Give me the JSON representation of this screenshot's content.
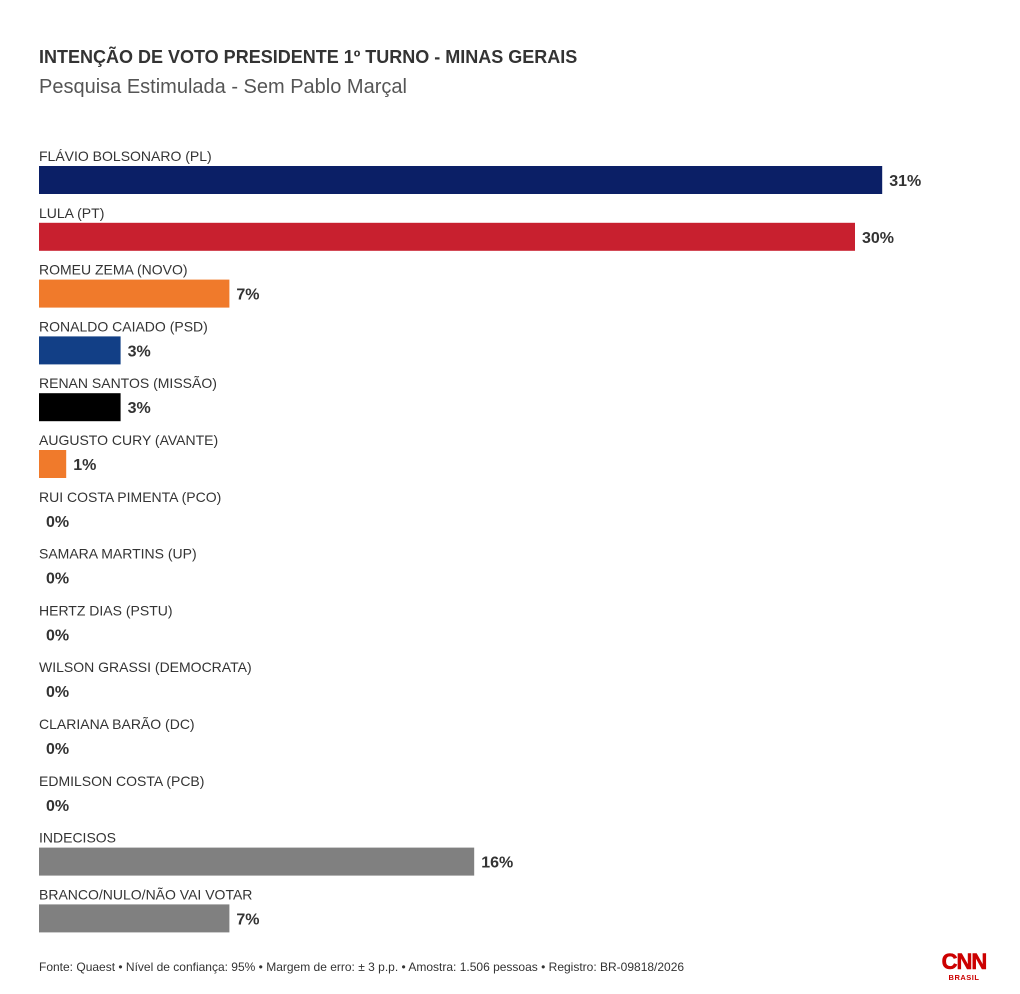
{
  "header": {
    "title": "INTENÇÃO DE VOTO PRESIDENTE 1º TURNO - MINAS GERAIS",
    "subtitle": "Pesquisa Estimulada - Sem Pablo Marçal"
  },
  "chart_data": {
    "type": "bar",
    "orientation": "horizontal",
    "title": "INTENÇÃO DE VOTO PRESIDENTE 1º TURNO - MINAS GERAIS",
    "subtitle": "Pesquisa Estimulada - Sem Pablo Marçal",
    "unit": "%",
    "grid": false,
    "categories": [
      "FLÁVIO BOLSONARO (PL)",
      "LULA (PT)",
      "ROMEU ZEMA (NOVO)",
      "RONALDO CAIADO (PSD)",
      "RENAN SANTOS (MISSÃO)",
      "AUGUSTO CURY (AVANTE)",
      "RUI COSTA PIMENTA (PCO)",
      "SAMARA MARTINS (UP)",
      "HERTZ DIAS (PSTU)",
      "WILSON GRASSI (DEMOCRATA)",
      "CLARIANA BARÃO (DC)",
      "EDMILSON COSTA (PCB)",
      "INDECISOS",
      "BRANCO/NULO/NÃO VAI VOTAR"
    ],
    "values": [
      31,
      30,
      7,
      3,
      3,
      1,
      0,
      0,
      0,
      0,
      0,
      0,
      16,
      7
    ],
    "value_labels": [
      "31%",
      "30%",
      "7%",
      "3%",
      "3%",
      "1%",
      "0%",
      "0%",
      "0%",
      "0%",
      "0%",
      "0%",
      "16%",
      "7%"
    ],
    "colors": [
      "#0b1f66",
      "#c8202f",
      "#f07a2b",
      "#123f86",
      "#000000",
      "#f07a2b",
      "#888888",
      "#888888",
      "#888888",
      "#888888",
      "#888888",
      "#888888",
      "#808080",
      "#808080"
    ]
  },
  "footer": {
    "source": "Fonte: Quaest • Nível de confiança: 95% • Margem de erro: ± 3 p.p. • Amostra: 1.506 pessoas • Registro: BR-09818/2026"
  },
  "logo": {
    "text": "CNN",
    "subtext": "BRASIL",
    "color": "#cc0000"
  }
}
